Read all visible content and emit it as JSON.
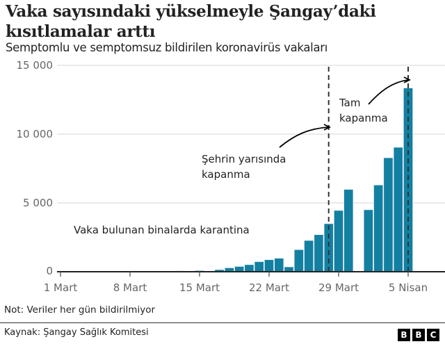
{
  "header": {
    "title": "Vaka sayısındaki yükselmeyle Şangay’daki kısıtlamalar arttı",
    "subtitle": "Semptomlu ve semptomsuz bildirilen koronavirüs vakaları"
  },
  "footer": {
    "note": "Not: Veriler her gün bildirilmiyor",
    "source": "Kaynak: Şangay Sağlık Komitesi",
    "logo": [
      "B",
      "B",
      "C"
    ]
  },
  "colors": {
    "bar": "#1380A1",
    "grid": "#dddddd",
    "axis": "#222222",
    "dashed": "#333333"
  },
  "annotations": {
    "building_quarantine": "Vaka bulunan binalarda karantina",
    "half_city_1": "Şehrin yarısında",
    "half_city_2": "kapanma",
    "full_1": "Tam",
    "full_2": "kapanma"
  },
  "chart_data": {
    "type": "bar",
    "title": "Vaka sayısındaki yükselmeyle Şangay’daki kısıtlamalar arttı",
    "subtitle": "Semptomlu ve semptomsuz bildirilen koronavirüs vakaları",
    "xlabel": "",
    "ylabel": "",
    "ylim": [
      0,
      15000
    ],
    "yticks": [
      0,
      5000,
      10000,
      15000
    ],
    "ytick_labels": [
      "0",
      "5 000",
      "10 000",
      "15 000"
    ],
    "xtick_labels": [
      "1 Mart",
      "8 Mart",
      "15 Mart",
      "22 Mart",
      "29 Mart",
      "5 Nisan"
    ],
    "grid": true,
    "legend": null,
    "categories": [
      "1 Mart",
      "2 Mart",
      "3 Mart",
      "4 Mart",
      "5 Mart",
      "6 Mart",
      "7 Mart",
      "8 Mart",
      "9 Mart",
      "10 Mart",
      "11 Mart",
      "12 Mart",
      "13 Mart",
      "14 Mart",
      "15 Mart",
      "16 Mart",
      "17 Mart",
      "18 Mart",
      "19 Mart",
      "20 Mart",
      "21 Mart",
      "22 Mart",
      "23 Mart",
      "24 Mart",
      "25 Mart",
      "26 Mart",
      "27 Mart",
      "28 Mart",
      "29 Mart",
      "30 Mart",
      "31 Mart",
      "1 Nisan",
      "2 Nisan",
      "3 Nisan",
      "4 Nisan",
      "5 Nisan"
    ],
    "values": [
      2,
      2,
      3,
      3,
      5,
      8,
      10,
      15,
      20,
      25,
      30,
      40,
      60,
      0,
      80,
      0,
      150,
      280,
      380,
      510,
      730,
      870,
      980,
      350,
      1600,
      2270,
      2690,
      3490,
      4450,
      5980,
      null,
      4500,
      6300,
      8280,
      9040,
      13350
    ],
    "annotations": [
      {
        "text": "Vaka bulunan binalarda karantina",
        "x": "approx 10–22 Mart"
      },
      {
        "text": "Şehrin yarısında kapanma",
        "x": "28 Mart",
        "marker": "dashed vertical line"
      },
      {
        "text": "Tam kapanma",
        "x": "5 Nisan",
        "marker": "dashed vertical line"
      }
    ],
    "notes": "31 Mart için veri yok"
  }
}
